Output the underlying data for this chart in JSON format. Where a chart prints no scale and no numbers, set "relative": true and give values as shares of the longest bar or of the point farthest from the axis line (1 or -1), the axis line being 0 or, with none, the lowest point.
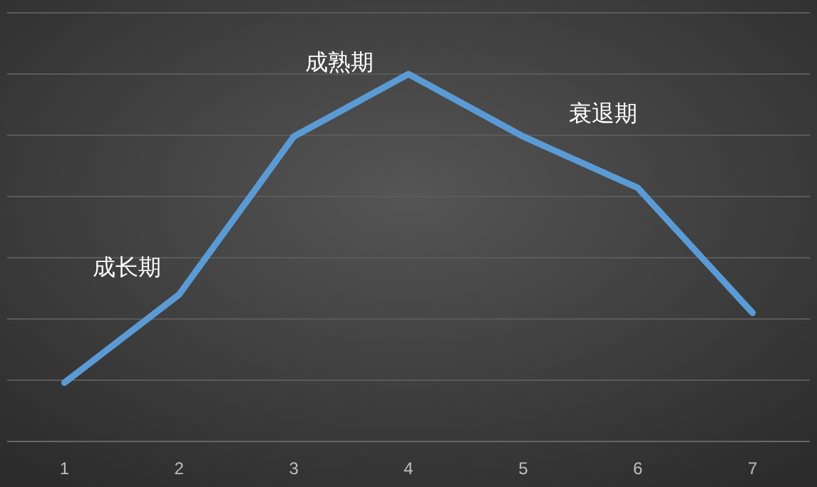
{
  "chart_data": {
    "type": "line",
    "relative": true,
    "grid": "y",
    "categories": [
      "1",
      "2",
      "3",
      "4",
      "5",
      "6",
      "7"
    ],
    "series": [
      {
        "color": "#5b9bd5",
        "values": [
          0.16,
          0.4,
          0.83,
          1,
          0.83,
          0.69,
          0.35
        ]
      }
    ],
    "annotations": [
      "成长期",
      "成熟期",
      "衰退期"
    ]
  }
}
